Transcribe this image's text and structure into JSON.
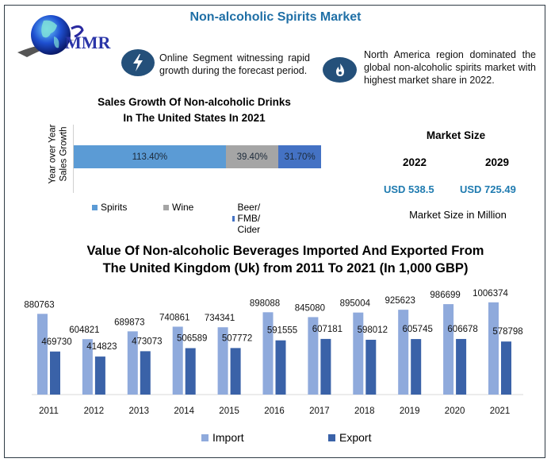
{
  "header": {
    "title": "Non-alcoholic Spirits Market",
    "logo_text": "MMR",
    "logo_icon": "globe-icon"
  },
  "highlights": [
    {
      "icon": "lightning-bolt-icon",
      "text": "Online Segment witnessing rapid growth during the forecast period."
    },
    {
      "icon": "flame-icon",
      "text": "North America region dominated the global non-alcoholic spirits market with highest market share in 2022."
    }
  ],
  "market_size": {
    "title": "Market Size",
    "years": [
      "2022",
      "2029"
    ],
    "values": [
      "USD 538.5",
      "USD 725.49"
    ],
    "unit_note": "Market Size in Million",
    "value_color": "#1f7bb0"
  },
  "chart_data": [
    {
      "type": "bar",
      "orientation": "horizontal-stacked",
      "title": "Sales Growth Of Non-alcoholic Drinks In The United States In 2021",
      "title_lines": [
        "Sales Growth Of Non-alcoholic Drinks",
        "In The United States In 2021"
      ],
      "ylabel": "Year over Year Sales Growth",
      "ylabel_lines": [
        "Year over Year",
        "Sales Growth"
      ],
      "xlabel": "",
      "categories": [
        "Year over Year Sales Growth"
      ],
      "series": [
        {
          "name": "Spirits",
          "values": [
            113.4
          ],
          "label": "113.40%",
          "color": "#5b9bd5"
        },
        {
          "name": "Wine",
          "values": [
            39.4
          ],
          "label": "39.40%",
          "color": "#a5a5a5"
        },
        {
          "name": "Beer/ FMB/ Cider",
          "values": [
            31.7
          ],
          "label": "31.70%",
          "color": "#4472c4"
        }
      ],
      "legend_position": "bottom",
      "grid": false
    },
    {
      "type": "bar",
      "title": "Value Of Non-alcoholic Beverages Imported And Exported From The United Kingdom (Uk) from 2011 To 2021 (In 1,000 GBP)",
      "title_lines": [
        "Value Of Non-alcoholic Beverages Imported And Exported From",
        "The United Kingdom (Uk) from 2011 To 2021 (In 1,000 GBP)"
      ],
      "xlabel": "",
      "ylabel": "",
      "categories": [
        "2011",
        "2012",
        "2013",
        "2014",
        "2015",
        "2016",
        "2017",
        "2018",
        "2019",
        "2020",
        "2021"
      ],
      "series": [
        {
          "name": "Import",
          "color": "#8faadc",
          "values": [
            880763,
            604821,
            689873,
            740861,
            734341,
            898088,
            845080,
            895004,
            925623,
            986699,
            1006374
          ]
        },
        {
          "name": "Export",
          "color": "#3a62a8",
          "values": [
            469730,
            414823,
            473073,
            506589,
            507772,
            591555,
            607181,
            598012,
            605745,
            606678,
            578798
          ]
        }
      ],
      "ylim": [
        0,
        1100000
      ],
      "legend_position": "bottom",
      "grid": false
    }
  ]
}
